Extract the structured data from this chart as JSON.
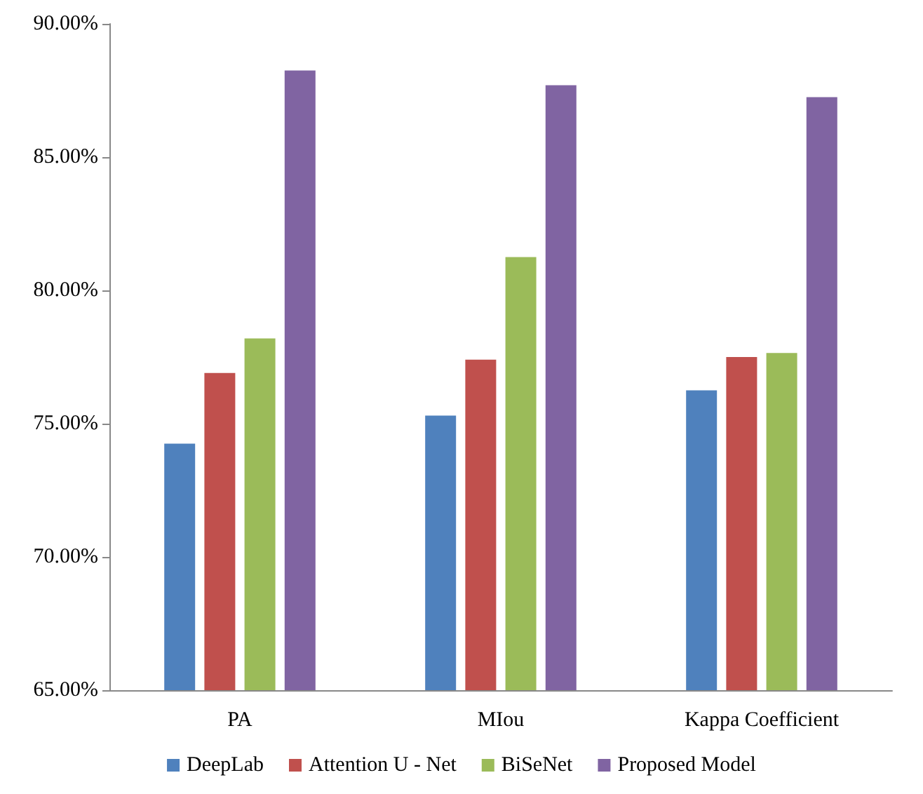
{
  "chart_data": {
    "type": "bar",
    "categories": [
      "PA",
      "MIou",
      "Kappa Coefficient"
    ],
    "series": [
      {
        "name": "DeepLab",
        "color": "#4f81bd",
        "values": [
          74.25,
          75.3,
          76.25
        ]
      },
      {
        "name": "Attention U - Net",
        "color": "#c0504d",
        "values": [
          76.9,
          77.4,
          77.5
        ]
      },
      {
        "name": "BiSeNet",
        "color": "#9bbb59",
        "values": [
          78.2,
          81.25,
          77.65
        ]
      },
      {
        "name": "Proposed Model",
        "color": "#8064a2",
        "values": [
          88.25,
          87.7,
          87.25
        ]
      }
    ],
    "ylim": [
      65,
      90
    ],
    "yticks": [
      {
        "value": 65,
        "label": "65.00%"
      },
      {
        "value": 70,
        "label": "70.00%"
      },
      {
        "value": 75,
        "label": "75.00%"
      },
      {
        "value": 80,
        "label": "80.00%"
      },
      {
        "value": 85,
        "label": "85.00%"
      },
      {
        "value": 90,
        "label": "90.00%"
      }
    ],
    "grid": false,
    "legend": "bottom"
  }
}
